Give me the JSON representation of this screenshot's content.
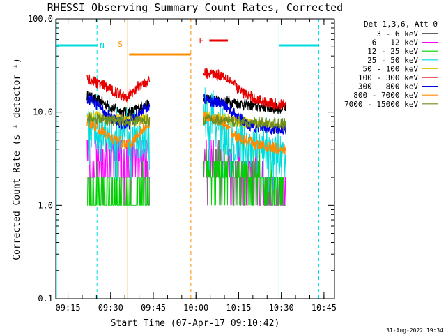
{
  "chart_data": {
    "type": "line",
    "title": "RHESSI Observing Summary Count Rates, Corrected",
    "xlabel": "Start Time (07-Apr-17 09:10:42)",
    "ylabel": "Corrected Count Rate (s⁻¹ detector⁻¹)",
    "y_scale": "log",
    "ylim": [
      0.1,
      100
    ],
    "xlim_minutes": [
      0,
      98
    ],
    "x_ticks": [
      {
        "label": "09:15",
        "minute": 4.3
      },
      {
        "label": "09:30",
        "minute": 19.3
      },
      {
        "label": "09:45",
        "minute": 34.3
      },
      {
        "label": "10:00",
        "minute": 49.3
      },
      {
        "label": "10:15",
        "minute": 64.3
      },
      {
        "label": "10:30",
        "minute": 79.3
      },
      {
        "label": "10:45",
        "minute": 94.3
      }
    ],
    "y_ticks": [
      {
        "label": "0.1",
        "value": 0.1
      },
      {
        "label": "1.0",
        "value": 1
      },
      {
        "label": "10.0",
        "value": 10
      },
      {
        "label": "100.0",
        "value": 100
      }
    ],
    "legend_title": "Det 1,3,6, Att 0",
    "legend_position": "right",
    "series": [
      {
        "name": "3 - 6 keV",
        "color": "#000000",
        "seg1": {
          "t0": 11,
          "t1": 33,
          "pts": [
            [
              11,
              15
            ],
            [
              13,
              14
            ],
            [
              16,
              13
            ],
            [
              18,
              12
            ],
            [
              20,
              11
            ],
            [
              22,
              10.5
            ],
            [
              24,
              10
            ],
            [
              26,
              10
            ],
            [
              28,
              10.5
            ],
            [
              30,
              11.5
            ],
            [
              33,
              12
            ]
          ]
        },
        "seg2": {
          "t0": 52,
          "t1": 81,
          "pts": [
            [
              52,
              14
            ],
            [
              55,
              13.5
            ],
            [
              58,
              13
            ],
            [
              61,
              13
            ],
            [
              64,
              12.5
            ],
            [
              67,
              12
            ],
            [
              70,
              11.5
            ],
            [
              73,
              11.5
            ],
            [
              76,
              11
            ],
            [
              79,
              11
            ],
            [
              81,
              11
            ]
          ]
        }
      },
      {
        "name": "6 - 12 keV",
        "color": "#ff00ff",
        "seg1": {
          "t0": 11,
          "t1": 33,
          "pts": [
            [
              11,
              3
            ],
            [
              22,
              3
            ],
            [
              33,
              3
            ]
          ]
        },
        "seg2": {
          "t0": 52,
          "t1": 81,
          "pts": [
            [
              52,
              3
            ],
            [
              60,
              2.5
            ],
            [
              68,
              2
            ],
            [
              74,
              1.5
            ],
            [
              81,
              1.5
            ]
          ]
        }
      },
      {
        "name": "12 - 25 keV",
        "color": "#00d000",
        "seg1": {
          "t0": 11,
          "t1": 33,
          "pts": [
            [
              11,
              1.4
            ],
            [
              22,
              1.3
            ],
            [
              33,
              1.3
            ]
          ]
        },
        "seg2": {
          "t0": 52,
          "t1": 81,
          "pts": [
            [
              52,
              2.5
            ],
            [
              58,
              2.3
            ],
            [
              64,
              2.2
            ],
            [
              70,
              1.8
            ],
            [
              76,
              1.5
            ],
            [
              81,
              1.4
            ]
          ]
        }
      },
      {
        "name": "25 - 50 keV",
        "color": "#00dcdc",
        "seg1": {
          "t0": 11,
          "t1": 33,
          "pts": [
            [
              11,
              7
            ],
            [
              15,
              6
            ],
            [
              20,
              5.5
            ],
            [
              26,
              5
            ],
            [
              33,
              5
            ]
          ]
        },
        "seg2": {
          "t0": 52,
          "t1": 81,
          "pts": [
            [
              52,
              8
            ],
            [
              56,
              6.5
            ],
            [
              60,
              5.5
            ],
            [
              66,
              4.5
            ],
            [
              72,
              3.8
            ],
            [
              81,
              3.2
            ]
          ]
        }
      },
      {
        "name": "50 - 100 keV",
        "color": "#e6c800",
        "seg1": {
          "t0": 11,
          "t1": 33,
          "pts": [
            [
              11,
              9.5
            ],
            [
              15,
              9
            ],
            [
              20,
              8.5
            ],
            [
              26,
              8
            ],
            [
              33,
              8.5
            ]
          ]
        },
        "seg2": {
          "t0": 52,
          "t1": 81,
          "pts": [
            [
              52,
              9
            ],
            [
              58,
              8.5
            ],
            [
              64,
              8
            ],
            [
              70,
              7.5
            ],
            [
              76,
              7
            ],
            [
              81,
              7
            ]
          ]
        }
      },
      {
        "name": "100 - 300 keV",
        "color": "#e60000",
        "seg1": {
          "t0": 11,
          "t1": 33,
          "pts": [
            [
              11,
              23
            ],
            [
              14,
              21
            ],
            [
              17,
              19
            ],
            [
              20,
              17
            ],
            [
              23,
              15.5
            ],
            [
              25,
              15
            ],
            [
              27,
              16
            ],
            [
              29,
              19
            ],
            [
              31,
              20.5
            ],
            [
              33,
              21
            ]
          ]
        },
        "seg2": {
          "t0": 52,
          "t1": 81,
          "pts": [
            [
              52,
              26
            ],
            [
              55,
              26
            ],
            [
              58,
              25
            ],
            [
              60,
              24
            ],
            [
              62,
              21
            ],
            [
              64,
              18
            ],
            [
              66,
              16
            ],
            [
              68,
              15
            ],
            [
              70,
              14
            ],
            [
              73,
              13
            ],
            [
              76,
              12.5
            ],
            [
              79,
              12
            ],
            [
              81,
              12
            ]
          ]
        }
      },
      {
        "name": "300 - 800 keV",
        "color": "#0000e6",
        "seg1": {
          "t0": 11,
          "t1": 33,
          "pts": [
            [
              11,
              14
            ],
            [
              13,
              13
            ],
            [
              16,
              11
            ],
            [
              18,
              9.5
            ],
            [
              20,
              8.5
            ],
            [
              22,
              7.8
            ],
            [
              24,
              7.3
            ],
            [
              26,
              7.5
            ],
            [
              28,
              9
            ],
            [
              30,
              10.5
            ],
            [
              33,
              11.5
            ]
          ]
        },
        "seg2": {
          "t0": 52,
          "t1": 81,
          "pts": [
            [
              52,
              14
            ],
            [
              55,
              13
            ],
            [
              58,
              12.5
            ],
            [
              60,
              11.5
            ],
            [
              62,
              10
            ],
            [
              64,
              9
            ],
            [
              66,
              8
            ],
            [
              68,
              7.3
            ],
            [
              70,
              7
            ],
            [
              73,
              6.8
            ],
            [
              76,
              6.5
            ],
            [
              79,
              6.5
            ],
            [
              81,
              6.5
            ]
          ]
        }
      },
      {
        "name": "800 - 7000 keV",
        "color": "#ff8c00",
        "seg1": {
          "t0": 11,
          "t1": 33,
          "pts": [
            [
              11,
              8
            ],
            [
              14,
              7
            ],
            [
              17,
              6
            ],
            [
              20,
              5.2
            ],
            [
              23,
              4.8
            ],
            [
              25,
              4.5
            ],
            [
              27,
              4.6
            ],
            [
              29,
              5.8
            ],
            [
              31,
              7
            ],
            [
              33,
              7.5
            ]
          ]
        },
        "seg2": {
          "t0": 52,
          "t1": 81,
          "pts": [
            [
              52,
              9
            ],
            [
              55,
              8.5
            ],
            [
              58,
              8
            ],
            [
              60,
              7
            ],
            [
              62,
              6
            ],
            [
              64,
              5.3
            ],
            [
              66,
              5
            ],
            [
              68,
              4.8
            ],
            [
              70,
              4.5
            ],
            [
              73,
              4.3
            ],
            [
              76,
              4.2
            ],
            [
              79,
              4
            ],
            [
              81,
              4
            ]
          ]
        }
      },
      {
        "name": "7000 - 15000 keV",
        "color": "#6b8e23",
        "seg1": {
          "t0": 11,
          "t1": 33,
          "pts": [
            [
              11,
              8.8
            ],
            [
              22,
              8
            ],
            [
              33,
              8.2
            ]
          ]
        },
        "seg2": {
          "t0": 52,
          "t1": 81,
          "pts": [
            [
              52,
              8.5
            ],
            [
              66,
              7.8
            ],
            [
              81,
              7.5
            ]
          ]
        }
      }
    ],
    "markers": [
      {
        "label": "N",
        "color": "#00dcdc",
        "kind": "night",
        "start": 0,
        "end": 14.5,
        "bar_y": 65
      },
      {
        "label": "S",
        "color": "#ff8c00",
        "kind": "saa",
        "start": 25.3,
        "end": 47.5,
        "bar_y": 78
      },
      {
        "label": "F",
        "color": "#e60000",
        "kind": "flare",
        "start": 54,
        "end": 60.5,
        "bar_y": 47
      },
      {
        "label": "",
        "color": "#00dcdc",
        "kind": "night",
        "start": 78.5,
        "end": 92.5,
        "bar_y": 65
      }
    ],
    "footer_date": "31-Aug-2022 19:34"
  }
}
